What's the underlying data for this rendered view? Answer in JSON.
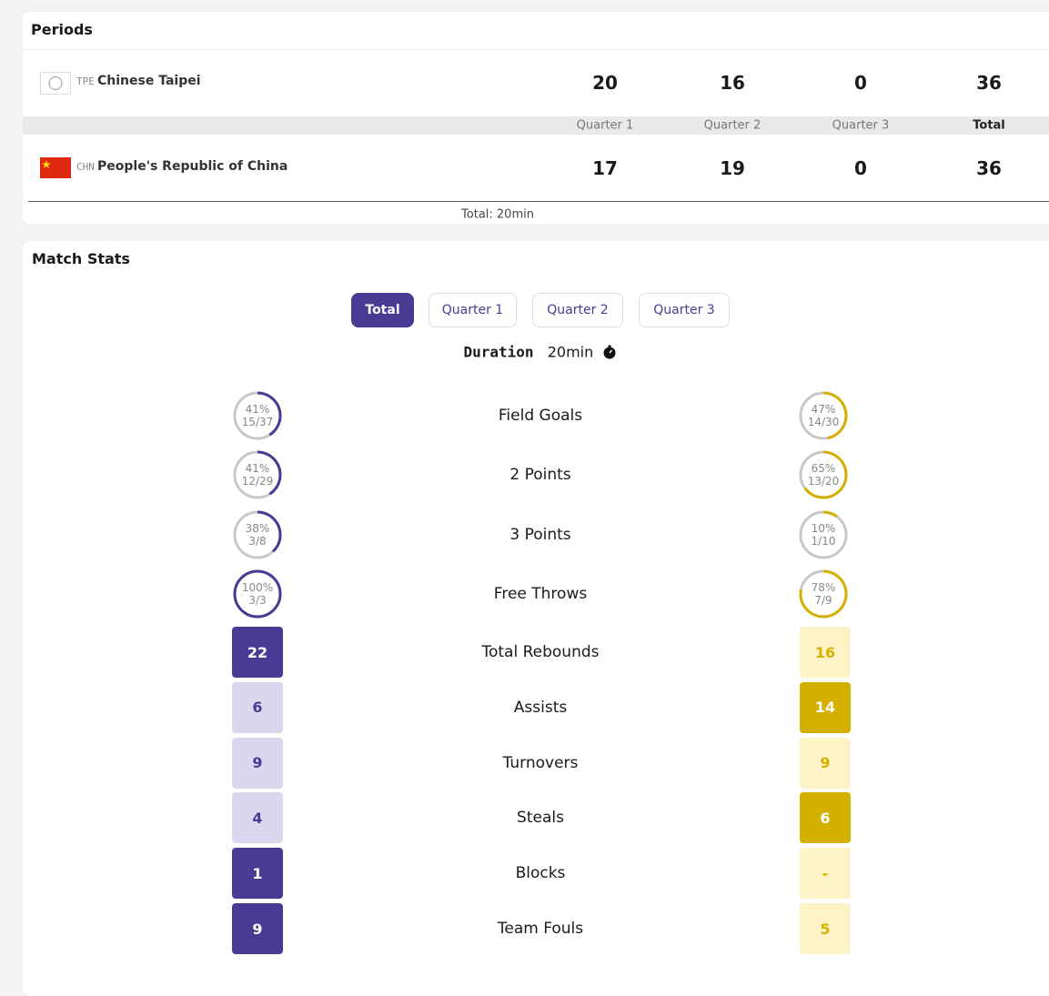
{
  "periods": {
    "title": "Periods",
    "teams": [
      {
        "code": "TPE",
        "name": "Chinese Taipei",
        "scores": [
          "20",
          "16",
          "0",
          "36"
        ]
      },
      {
        "code": "CHN",
        "name": "People's Republic of China",
        "scores": [
          "17",
          "19",
          "0",
          "36"
        ]
      }
    ],
    "columns": [
      "Quarter 1",
      "Quarter 2",
      "Quarter 3",
      "Total"
    ],
    "footer": "Total: 20min"
  },
  "match_stats": {
    "title": "Match Stats",
    "tabs": [
      "Total",
      "Quarter 1",
      "Quarter 2",
      "Quarter 3"
    ],
    "duration_label": "Duration",
    "duration_value": "20min",
    "shooting": [
      {
        "label": "Field Goals",
        "home_pct": 41,
        "home_pct_label": "41%",
        "home_made": "15/37",
        "away_pct": 47,
        "away_pct_label": "47%",
        "away_made": "14/30"
      },
      {
        "label": "2 Points",
        "home_pct": 41,
        "home_pct_label": "41%",
        "home_made": "12/29",
        "away_pct": 65,
        "away_pct_label": "65%",
        "away_made": "13/20"
      },
      {
        "label": "3 Points",
        "home_pct": 38,
        "home_pct_label": "38%",
        "home_made": "3/8",
        "away_pct": 10,
        "away_pct_label": "10%",
        "away_made": "1/10"
      },
      {
        "label": "Free Throws",
        "home_pct": 100,
        "home_pct_label": "100%",
        "home_made": "3/3",
        "away_pct": 78,
        "away_pct_label": "78%",
        "away_made": "7/9"
      }
    ],
    "counts": [
      {
        "label": "Total Rebounds",
        "home": "22",
        "away": "16"
      },
      {
        "label": "Assists",
        "home": "6",
        "away": "14"
      },
      {
        "label": "Turnovers",
        "home": "9",
        "away": "9"
      },
      {
        "label": "Steals",
        "home": "4",
        "away": "6"
      },
      {
        "label": "Blocks",
        "home": "1",
        "away": "-"
      },
      {
        "label": "Team Fouls",
        "home": "9",
        "away": "5"
      }
    ]
  }
}
